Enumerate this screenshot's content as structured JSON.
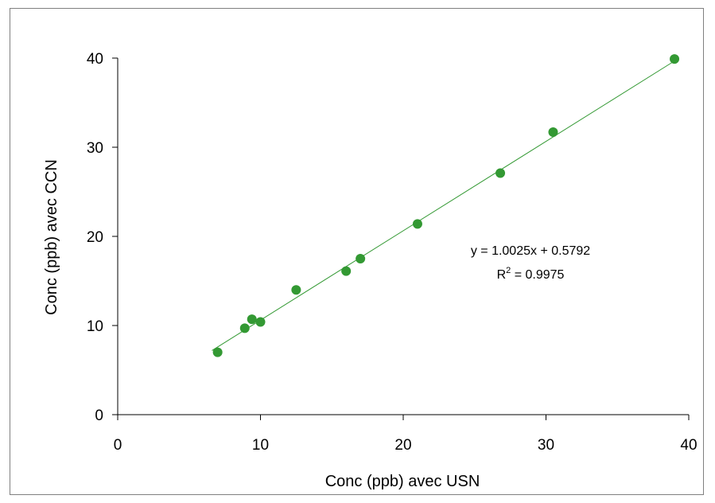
{
  "chart_data": {
    "type": "scatter",
    "title": "",
    "xlabel": "Conc (ppb) avec USN",
    "ylabel": "Conc (ppb) avec CCN",
    "xlim": [
      0,
      40
    ],
    "ylim": [
      0,
      40
    ],
    "x_ticks": [
      0,
      10,
      20,
      30,
      40
    ],
    "y_ticks": [
      0,
      10,
      20,
      30,
      40
    ],
    "grid": false,
    "legend": "none",
    "series": [
      {
        "color": "#339933",
        "points": [
          {
            "x": 7.0,
            "y": 7.0
          },
          {
            "x": 8.9,
            "y": 9.7
          },
          {
            "x": 9.4,
            "y": 10.7
          },
          {
            "x": 10.0,
            "y": 10.4
          },
          {
            "x": 12.5,
            "y": 14.0
          },
          {
            "x": 16.0,
            "y": 16.1
          },
          {
            "x": 17.0,
            "y": 17.5
          },
          {
            "x": 21.0,
            "y": 21.4
          },
          {
            "x": 26.8,
            "y": 27.1
          },
          {
            "x": 30.5,
            "y": 31.7
          },
          {
            "x": 39.0,
            "y": 39.9
          }
        ]
      }
    ],
    "trendline": {
      "slope": 1.0025,
      "intercept": 0.5792,
      "x_range": [
        6.6,
        39.0
      ],
      "color": "#339933",
      "equation": "y = 1.0025x + 0.5792",
      "r2_prefix": "R",
      "r2_superscript": "2",
      "r2_value": " = 0.9975"
    }
  }
}
